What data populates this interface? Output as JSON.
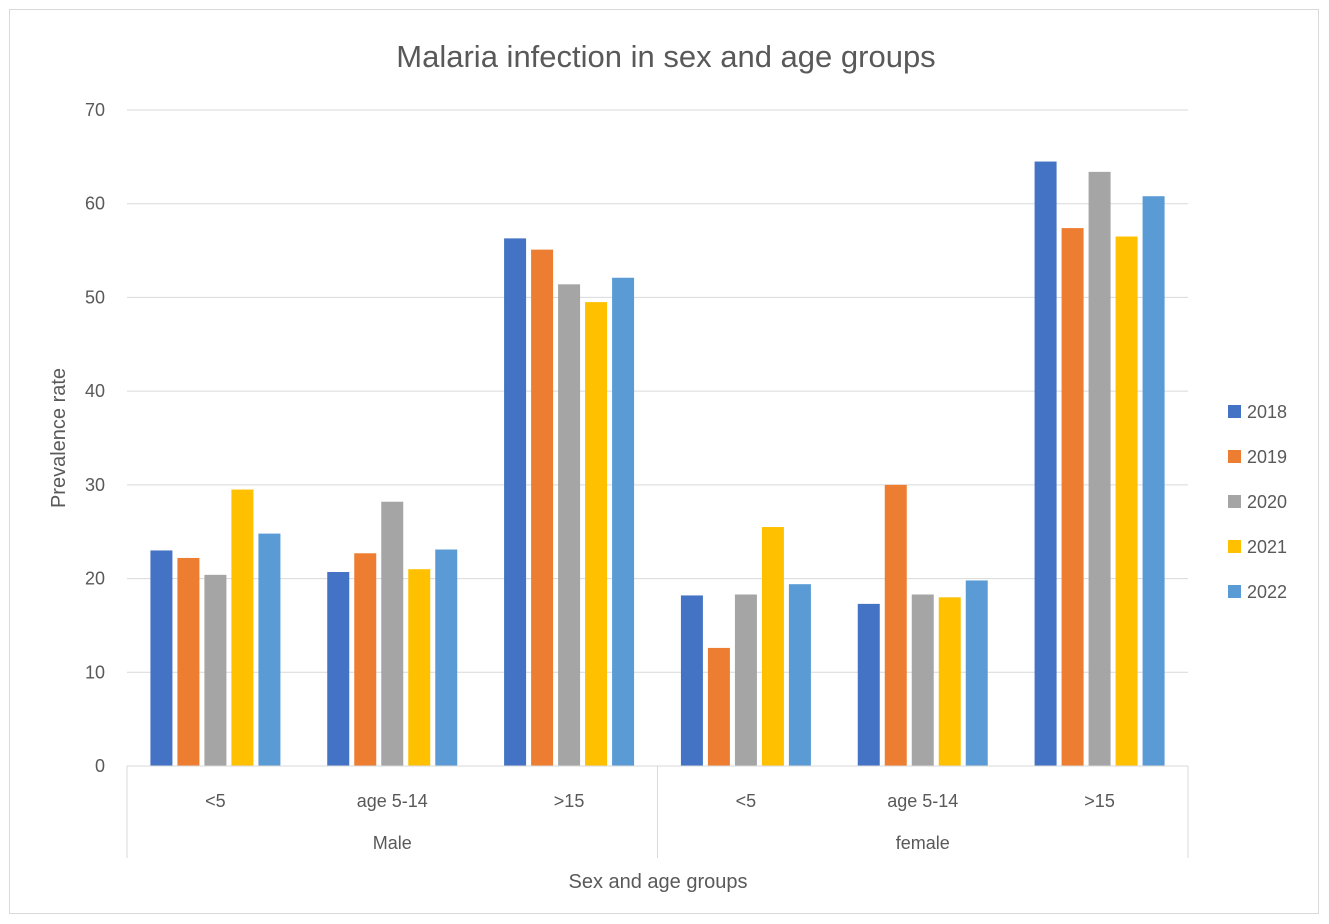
{
  "chart_data": {
    "type": "bar",
    "title": "Malaria infection in sex and age groups",
    "xlabel": "Sex and age groups",
    "ylabel": "Prevalence rate",
    "ylim": [
      0,
      70
    ],
    "yticks": [
      "0",
      "10",
      "20",
      "30",
      "40",
      "50",
      "60",
      "70"
    ],
    "grid": true,
    "legend_position": "right",
    "groups": [
      {
        "label": "Male",
        "categories": [
          "<5",
          "age 5-14",
          ">15"
        ]
      },
      {
        "label": "female",
        "categories": [
          "<5",
          "age 5-14",
          ">15"
        ]
      }
    ],
    "categories": [
      "<5",
      "age 5-14",
      ">15",
      "<5",
      "age 5-14",
      ">15"
    ],
    "series": [
      {
        "name": "2018",
        "color": "#4472c4",
        "values": [
          23.0,
          20.7,
          56.3,
          18.2,
          17.3,
          64.5
        ]
      },
      {
        "name": "2019",
        "color": "#ed7d31",
        "values": [
          22.2,
          22.7,
          55.1,
          12.6,
          30.0,
          57.4
        ]
      },
      {
        "name": "2020",
        "color": "#a5a5a5",
        "values": [
          20.4,
          28.2,
          51.4,
          18.3,
          18.3,
          63.4
        ]
      },
      {
        "name": "2021",
        "color": "#ffc000",
        "values": [
          29.5,
          21.0,
          49.5,
          25.5,
          18.0,
          56.5
        ]
      },
      {
        "name": "2022",
        "color": "#5b9bd5",
        "values": [
          24.8,
          23.1,
          52.1,
          19.4,
          19.8,
          60.8
        ]
      }
    ]
  }
}
